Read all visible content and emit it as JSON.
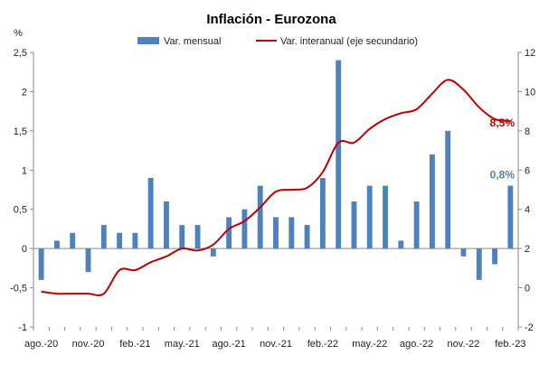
{
  "chart_data": {
    "type": "bar+line",
    "title": "Inflación - Eurozona",
    "y_unit_label": "%",
    "x_labels": [
      "ago.-20",
      "sep.-20",
      "oct.-20",
      "nov.-20",
      "dic.-20",
      "ene.-21",
      "feb.-21",
      "mar.-21",
      "abr.-21",
      "may.-21",
      "jun.-21",
      "jul.-21",
      "ago.-21",
      "sep.-21",
      "oct.-21",
      "nov.-21",
      "dic.-21",
      "ene.-22",
      "feb.-22",
      "mar.-22",
      "abr.-22",
      "may.-22",
      "jun.-22",
      "jul.-22",
      "ago.-22",
      "sep.-22",
      "oct.-22",
      "nov.-22",
      "dic.-22",
      "ene.-23",
      "feb.-23"
    ],
    "x_tick_labels": [
      "ago.-20",
      "nov.-20",
      "feb.-21",
      "may.-21",
      "ago.-21",
      "nov.-21",
      "feb.-22",
      "may.-22",
      "ago.-22",
      "nov.-22",
      "feb.-23"
    ],
    "series": [
      {
        "name": "Var. mensual",
        "type": "bar",
        "axis": "primary",
        "color": "#4f81bd",
        "values": [
          -0.4,
          0.1,
          0.2,
          -0.3,
          0.3,
          0.2,
          0.2,
          0.9,
          0.6,
          0.3,
          0.3,
          -0.1,
          0.4,
          0.5,
          0.8,
          0.4,
          0.4,
          0.3,
          0.9,
          2.4,
          0.6,
          0.8,
          0.8,
          0.1,
          0.6,
          1.2,
          1.5,
          -0.1,
          -0.4,
          -0.2,
          0.8
        ]
      },
      {
        "name": "Var. interanual (eje secundario)",
        "type": "line",
        "axis": "secondary",
        "color": "#c00000",
        "values": [
          -0.2,
          -0.3,
          -0.3,
          -0.3,
          -0.3,
          0.9,
          0.9,
          1.3,
          1.6,
          2.0,
          1.9,
          2.2,
          3.0,
          3.4,
          4.1,
          4.9,
          5.0,
          5.1,
          5.9,
          7.4,
          7.4,
          8.1,
          8.6,
          8.9,
          9.1,
          9.9,
          10.6,
          10.1,
          9.2,
          8.6,
          8.5
        ]
      }
    ],
    "y_primary": {
      "min": -1,
      "max": 2.5,
      "step": 0.5,
      "tick_labels": [
        "-1",
        "-0,5",
        "0",
        "0,5",
        "1",
        "1,5",
        "2",
        "2,5"
      ]
    },
    "y_secondary": {
      "min": -2,
      "max": 12,
      "step": 2,
      "tick_labels": [
        "-2",
        "0",
        "2",
        "4",
        "6",
        "8",
        "10",
        "12"
      ]
    },
    "annotations": [
      {
        "text": "8,5%",
        "series": "Var. interanual (eje secundario)",
        "color": "#c00000"
      },
      {
        "text": "0,8%",
        "series": "Var. mensual",
        "color": "#4f81bd"
      }
    ],
    "legend_position": "top",
    "grid": false
  }
}
